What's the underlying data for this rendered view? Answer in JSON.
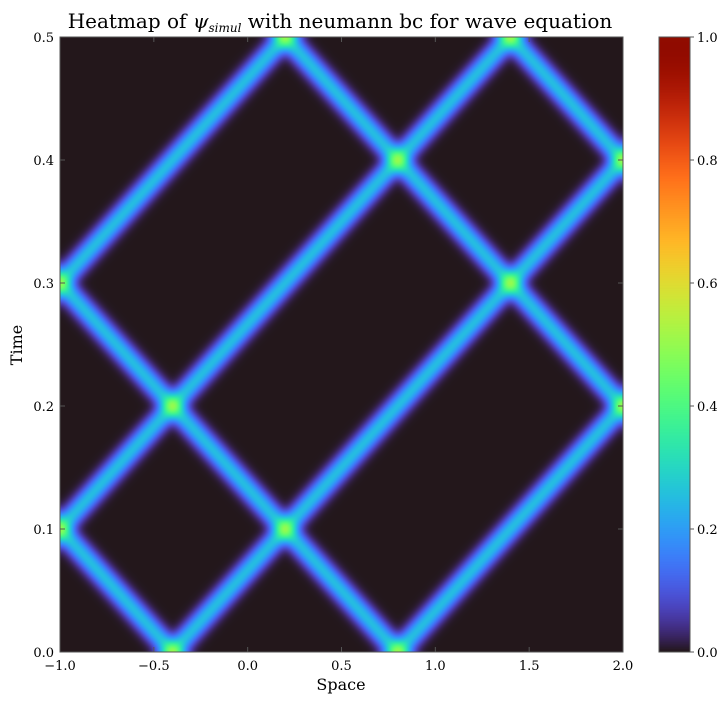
{
  "chart_data": {
    "type": "heatmap",
    "title": {
      "prefix": "Heatmap of ",
      "symbol": "ψ",
      "subscript": "simul",
      "suffix": " with neumann bc for wave equation"
    },
    "xlabel": "Space",
    "ylabel": "Time",
    "xlim": [
      -1.0,
      2.0
    ],
    "ylim": [
      0.0,
      0.5
    ],
    "xticks": [
      -1.0,
      -0.5,
      0.0,
      0.5,
      1.0,
      1.5,
      2.0
    ],
    "xtick_labels": [
      "−1.0",
      "−0.5",
      "0.0",
      "0.5",
      "1.0",
      "1.5",
      "2.0"
    ],
    "yticks": [
      0.0,
      0.1,
      0.2,
      0.3,
      0.4,
      0.5
    ],
    "ytick_labels": [
      "0.0",
      "0.1",
      "0.2",
      "0.3",
      "0.4",
      "0.5"
    ],
    "colormap": "turbo",
    "colorbar": {
      "range": [
        0.0,
        1.0
      ],
      "ticks": [
        0.0,
        0.2,
        0.4,
        0.6,
        0.8,
        1.0
      ],
      "tick_labels": [
        "0.0",
        "0.2",
        "0.4",
        "0.6",
        "0.8",
        "1.0"
      ]
    },
    "field": {
      "description_of_values": "Two Gaussian pulses (peak value 0.5 each) travelling at speed 6 in opposite directions, reflecting at x = -1 and x = 2 (Neumann); superposition peaks at 1.0",
      "pulse_centers_t0": [
        -0.4,
        0.8
      ],
      "wave_speed": 6,
      "pulse_peak": 0.5,
      "pulse_width": 0.05
    },
    "peak_points": [
      {
        "x": -0.4,
        "t": 0.0
      },
      {
        "x": 0.8,
        "t": 0.0
      },
      {
        "x": -1.0,
        "t": 0.1
      },
      {
        "x": 0.2,
        "t": 0.1
      },
      {
        "x": -0.4,
        "t": 0.2
      },
      {
        "x": 2.0,
        "t": 0.2
      },
      {
        "x": -1.0,
        "t": 0.3
      },
      {
        "x": 1.4,
        "t": 0.3
      },
      {
        "x": 0.8,
        "t": 0.4
      },
      {
        "x": 2.0,
        "t": 0.4
      },
      {
        "x": 0.2,
        "t": 0.5
      },
      {
        "x": 1.4,
        "t": 0.5
      }
    ],
    "grid": false
  }
}
